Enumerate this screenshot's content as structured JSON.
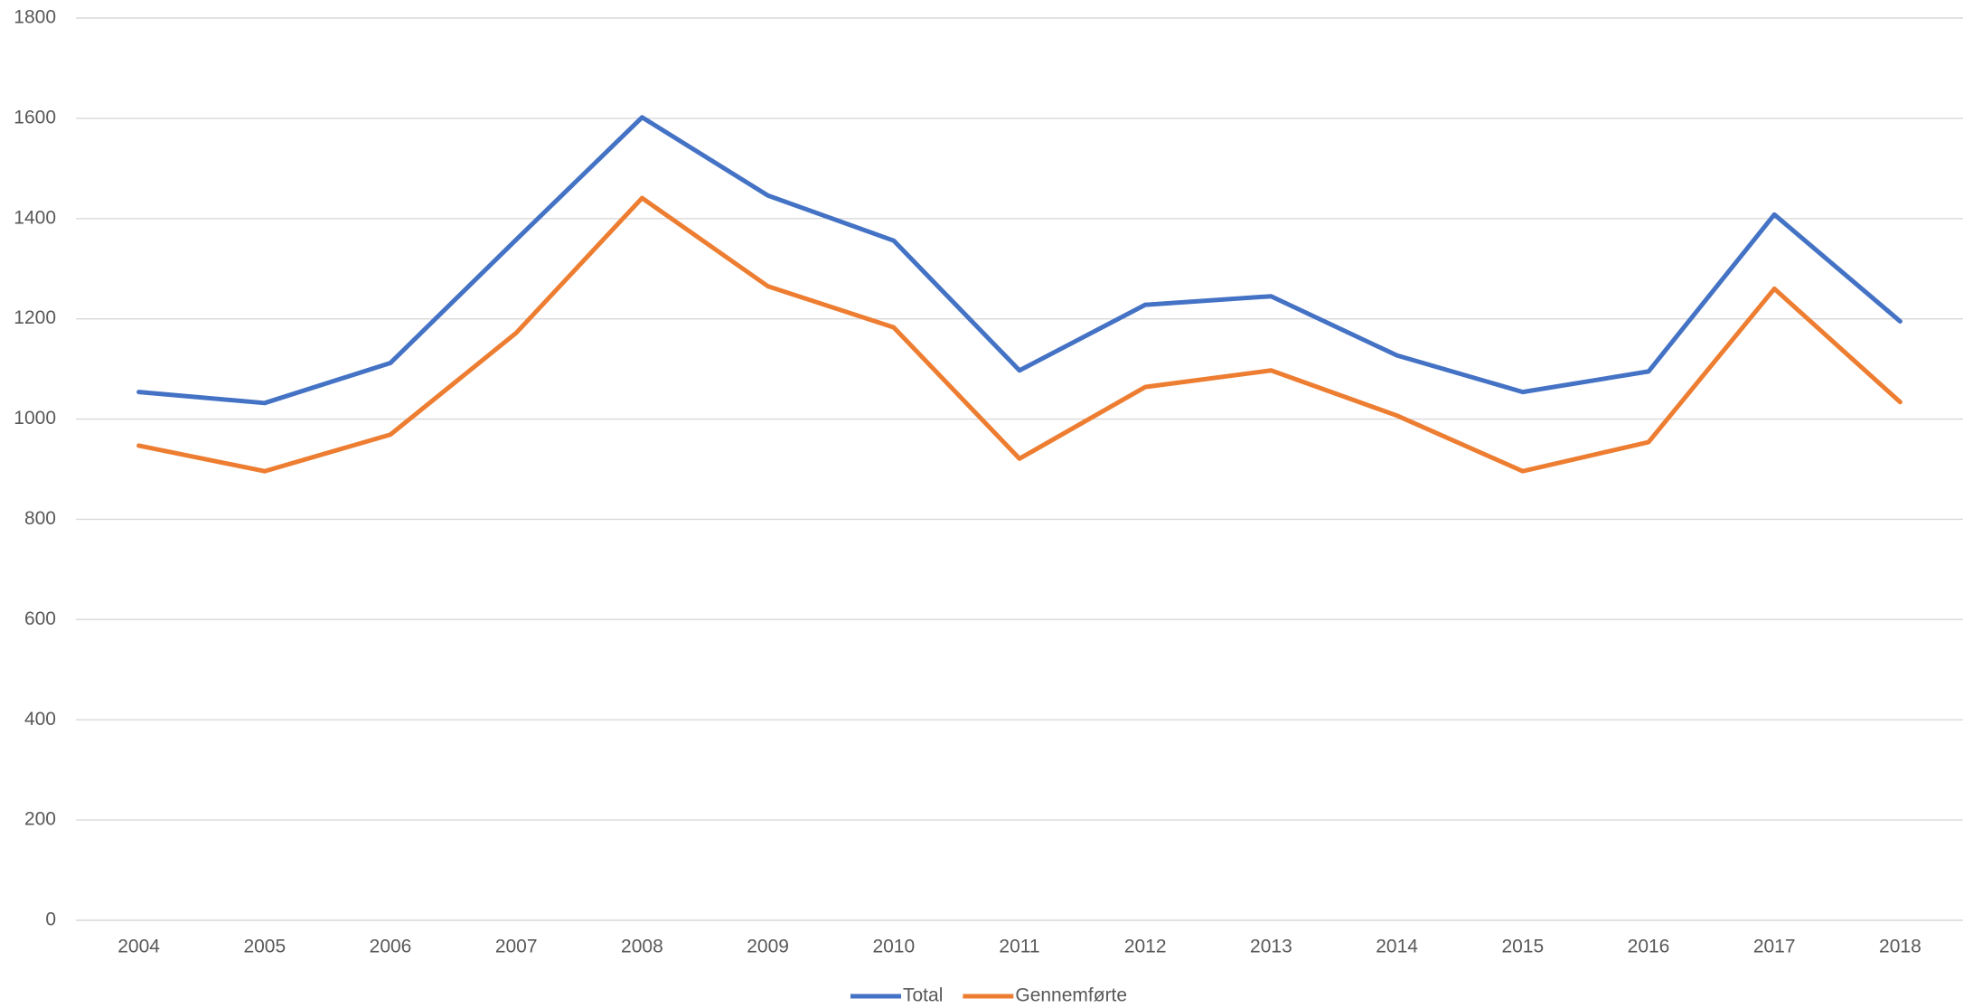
{
  "chart_data": {
    "type": "line",
    "categories": [
      "2004",
      "2005",
      "2006",
      "2007",
      "2008",
      "2009",
      "2010",
      "2011",
      "2012",
      "2013",
      "2014",
      "2015",
      "2016",
      "2017",
      "2018"
    ],
    "series": [
      {
        "name": "Total",
        "color": "#4472c4",
        "values": [
          1054,
          1032,
          1112,
          1358,
          1602,
          1446,
          1356,
          1097,
          1228,
          1245,
          1127,
          1054,
          1095,
          1408,
          1195
        ]
      },
      {
        "name": "Gennemførte",
        "color": "#ed7d31",
        "values": [
          947,
          896,
          969,
          1172,
          1441,
          1265,
          1183,
          921,
          1064,
          1097,
          1007,
          896,
          954,
          1260,
          1034
        ]
      }
    ],
    "ylim": [
      0,
      1800
    ],
    "yticks": [
      0,
      200,
      400,
      600,
      800,
      1000,
      1200,
      1400,
      1600,
      1800
    ],
    "grid": true,
    "legend": "bottom"
  }
}
